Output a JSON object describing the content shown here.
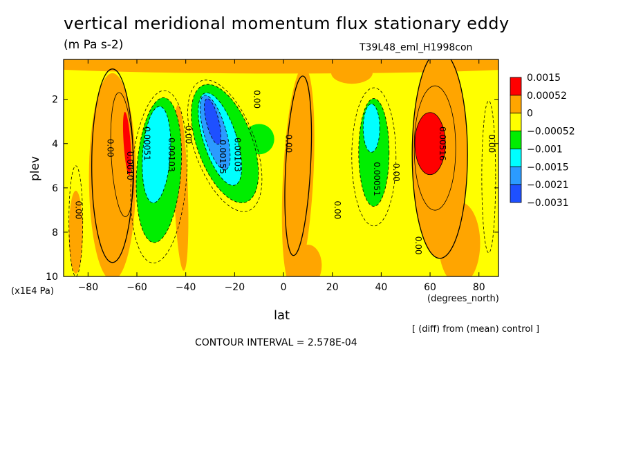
{
  "chart_data": {
    "type": "heatmap",
    "title": "vertical meridional momentum flux stationary eddy",
    "units": "(m Pa s-2)",
    "run_label": "T39L48_eml_H1998con",
    "xlabel": "lat",
    "x_unit_label": "(degrees_north)",
    "ylabel": "plev",
    "y_unit_label": "(x1E4 Pa)",
    "xlim": [
      -90,
      88
    ],
    "ylim": [
      10,
      0.2
    ],
    "x_ticks": [
      -80,
      -60,
      -40,
      -20,
      0,
      20,
      40,
      60,
      80
    ],
    "y_ticks": [
      2,
      4,
      6,
      8,
      10
    ],
    "colorbar": {
      "levels": [
        "0.0015",
        "0.00052",
        "0",
        "−0.00052",
        "−0.001",
        "−0.0015",
        "−0.0021",
        "−0.0031"
      ],
      "colors": [
        "#ff0000",
        "#ffa500",
        "#ffff00",
        "#00ee00",
        "#00ffff",
        "#2b9bff",
        "#1e50ff"
      ]
    },
    "contour_labels": [
      {
        "text": "0.00",
        "lat": -85,
        "plev": 7.0
      },
      {
        "text": "0.00",
        "lat": -72,
        "plev": 4.2
      },
      {
        "text": "0.0010",
        "lat": -64,
        "plev": 5.0
      },
      {
        "text": "0.00051",
        "lat": -57,
        "plev": 4.0
      },
      {
        "text": "0.00103",
        "lat": -47,
        "plev": 4.5
      },
      {
        "text": "0.00",
        "lat": -40,
        "plev": 3.6
      },
      {
        "text": "0.00155",
        "lat": -26,
        "plev": 4.6
      },
      {
        "text": "0.00103",
        "lat": -20,
        "plev": 4.5
      },
      {
        "text": "0.00",
        "lat": -12,
        "plev": 2.0
      },
      {
        "text": "0.00",
        "lat": 1,
        "plev": 4.0
      },
      {
        "text": "0.00",
        "lat": 21,
        "plev": 7.0
      },
      {
        "text": "0.00051",
        "lat": 37,
        "plev": 5.6
      },
      {
        "text": "0.00",
        "lat": 45,
        "plev": 5.3
      },
      {
        "text": "0.00",
        "lat": 54,
        "plev": 8.6
      },
      {
        "text": "0.00516",
        "lat": 64,
        "plev": 4.0
      },
      {
        "text": "0.00",
        "lat": 84,
        "plev": 4.0
      }
    ]
  },
  "annotations": {
    "diff_note": "[ (diff) from (mean) control ]",
    "contour_interval": "CONTOUR INTERVAL = 2.578E-04"
  }
}
